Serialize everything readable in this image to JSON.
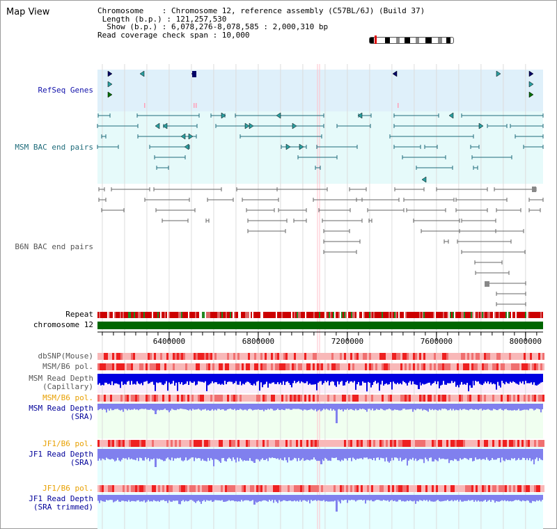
{
  "header": {
    "map_title": "Map View",
    "info_rows": [
      "Chromosome    : Chromosome 12, reference assembly (C57BL/6J) (Build 37)",
      " Length (b.p.) : 121,257,530",
      "  Show (b.p.) : 6,078,276-8,078,585 : 2,000,310 bp",
      "Read coverage check span : 10,000"
    ]
  },
  "tracks": {
    "refseq": "RefSeq Genes",
    "msm_bac": "MSM BAC end pairs",
    "b6n_bac": "B6N BAC end pairs",
    "repeat": "Repeat",
    "chromosome": "chromosome 12",
    "dbsnp": "dbSNP(Mouse)",
    "msm_b6_pol_1": "MSM/B6 pol.",
    "msm_read_depth_cap_1": "MSM Read Depth",
    "msm_read_depth_cap_2": "(Capillary)",
    "msm_b6_pol_2": "MSM/B6 pol.",
    "msm_read_depth_sra_1": "MSM Read Depth",
    "msm_read_depth_sra_2": "(SRA)",
    "jf1_b6_pol_1": "JF1/B6 pol.",
    "jf1_read_depth_sra_1": "JF1 Read Depth",
    "jf1_read_depth_sra_2": "(SRA)",
    "jf1_b6_pol_2": "JF1/B6 pol.",
    "jf1_read_depth_trim_1": "JF1 Read Depth",
    "jf1_read_depth_trim_2": "(SRA trimmed)"
  },
  "axis": {
    "range_bp": [
      6078276,
      8078585
    ],
    "ticks": [
      {
        "bp": 6400000,
        "label": "6400000"
      },
      {
        "bp": 6800000,
        "label": "6800000"
      },
      {
        "bp": 7200000,
        "label": "7200000"
      },
      {
        "bp": 7600000,
        "label": "7600000"
      },
      {
        "bp": 8000000,
        "label": "8000000"
      }
    ]
  },
  "colors": {
    "refseq_bg": "#dff0fa",
    "msm_bg": "#e6fafa",
    "depth_bg": "#f0fff0",
    "jf1_bg": "#e6ffff",
    "gene_navy": "#000066",
    "gene_teal": "#2a9fa0",
    "gene_green": "#007000",
    "msm_line": "#1e6b7a",
    "b6n_line": "#666666",
    "chromosome": "#006600",
    "repeat_red": "#cc0000",
    "depth_blue": "#0000e0",
    "depth_light": "#8080ee",
    "pol_red": "#ee0000",
    "marker_pink": "#ff9fb8"
  }
}
